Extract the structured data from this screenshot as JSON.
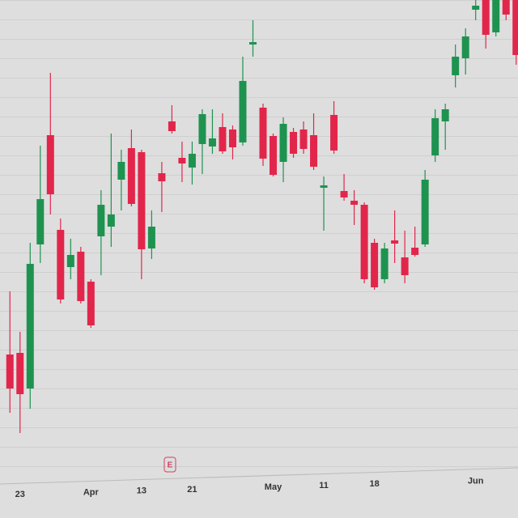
{
  "chart_data": {
    "type": "candlestick",
    "categories": [
      null,
      "23",
      null,
      null,
      null,
      null,
      null,
      null,
      "Apr",
      null,
      null,
      null,
      null,
      "13",
      null,
      null,
      null,
      null,
      "21",
      null,
      null,
      null,
      null,
      null,
      null,
      null,
      "May",
      null,
      null,
      null,
      null,
      "11",
      null,
      null,
      null,
      null,
      "18",
      null,
      null,
      null,
      null,
      null,
      null,
      null,
      null,
      null,
      "Jun",
      null,
      null,
      null,
      null
    ],
    "open": [
      32.4,
      32.8,
      24,
      59.6,
      86.6,
      63.2,
      54,
      57.8,
      50.4,
      61.6,
      64,
      75.6,
      83.4,
      82.4,
      58.6,
      77.2,
      90,
      81,
      78.6,
      84.4,
      83.8,
      88.6,
      88,
      84.8,
      109,
      93.4,
      86.4,
      80,
      87.4,
      88,
      86.6,
      73.6,
      91.6,
      72.8,
      70.4,
      69.4,
      60,
      51,
      60.6,
      56.4,
      58.8,
      59.6,
      81.6,
      90,
      101.4,
      105.6,
      117.6,
      120,
      112,
      120,
      120
    ],
    "high": [
      48,
      38,
      60,
      84,
      102,
      66,
      61,
      59,
      51,
      73,
      87,
      83,
      88,
      83,
      68,
      80,
      94,
      85,
      85,
      93,
      93,
      92,
      89,
      106,
      115,
      94.4,
      87,
      91,
      88.4,
      90,
      92,
      76.4,
      95,
      77,
      73,
      70,
      61,
      60,
      68,
      63,
      64,
      78,
      93,
      94.4,
      109,
      113,
      120,
      120,
      120,
      120,
      120
    ],
    "low": [
      18,
      13,
      19,
      55,
      67,
      45,
      51,
      45,
      39,
      52,
      59,
      68,
      69,
      51,
      56,
      67.6,
      87,
      75,
      74.4,
      77,
      82,
      82,
      80.6,
      84,
      106,
      79,
      76.4,
      75,
      81,
      82,
      78,
      63,
      82,
      70.4,
      64.4,
      50,
      48.4,
      50,
      55,
      50,
      56.6,
      59,
      80,
      83,
      98.4,
      101.6,
      115,
      108,
      111,
      115,
      104
    ],
    "close": [
      24,
      22.6,
      54.8,
      70.8,
      72,
      46,
      57,
      45.6,
      39.6,
      69.4,
      67,
      80,
      69.6,
      58.4,
      64,
      75.2,
      87.6,
      79.6,
      82,
      91.8,
      85.8,
      82.6,
      83.6,
      100,
      109.6,
      80.8,
      76.8,
      89.4,
      82,
      83.2,
      78.8,
      74.2,
      82.8,
      71.2,
      69.4,
      51,
      49,
      58.6,
      59.8,
      52,
      57,
      75.6,
      90.8,
      93,
      106,
      111,
      118.6,
      111.4,
      120,
      116.4,
      106.4
    ],
    "up_color": "#1e9350",
    "down_color": "#e2264b",
    "ylim": [
      0,
      120
    ],
    "annotations": [
      "E"
    ]
  }
}
